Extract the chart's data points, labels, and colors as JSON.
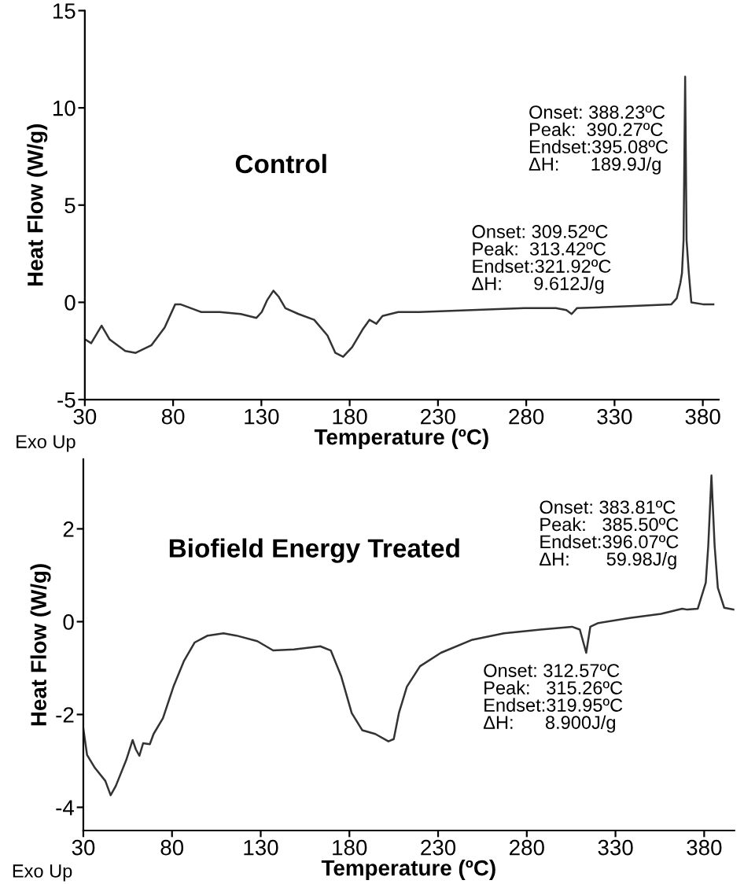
{
  "chart_data": [
    {
      "type": "line",
      "title": "Control",
      "xlabel": "Temperature (ºC)",
      "ylabel": "Heat Flow (W/g)",
      "xlim": [
        30,
        389
      ],
      "xticks": [
        30,
        80,
        130,
        180,
        230,
        280,
        330,
        380
      ],
      "ylim": [
        -5,
        15
      ],
      "yticks": [
        -5,
        0,
        5,
        10,
        15
      ],
      "grid": false,
      "marker": "none",
      "line_style": "solid",
      "annotations": [
        "Onset: 388.23ºC\nPeak:  390.27ºC\nEndset:395.08ºC\nΔH:      189.9J/g",
        "Onset: 309.52ºC\nPeak:  313.42ºC\nEndset:321.92ºC\nΔH:      9.612J/g",
        "Exo Up"
      ],
      "series": [
        {
          "color": "#333333",
          "x": [
            30,
            33.6,
            39.5,
            44,
            52.9,
            58.8,
            67.8,
            75.2,
            81.2,
            84.1,
            90.1,
            96,
            106.4,
            118.3,
            127.2,
            130.2,
            133.2,
            136.8,
            139.7,
            143.6,
            151,
            159.9,
            167.4,
            171.9,
            176.3,
            181.4,
            187.3,
            191.2,
            195.1,
            198.6,
            207.5,
            219.4,
            249.2,
            278.9,
            296.8,
            302.7,
            305.7,
            308.7,
            338.4,
            362.2,
            365.2,
            367.3,
            368.2,
            369.1,
            370,
            370.8,
            372,
            373.5,
            380,
            386
          ],
          "values": [
            -1.9,
            -2.1,
            -1.2,
            -1.9,
            -2.5,
            -2.6,
            -2.2,
            -1.3,
            -0.1,
            -0.1,
            -0.3,
            -0.5,
            -0.5,
            -0.6,
            -0.8,
            -0.5,
            0.1,
            0.6,
            0.3,
            -0.3,
            -0.6,
            -0.9,
            -1.7,
            -2.6,
            -2.8,
            -2.3,
            -1.4,
            -0.9,
            -1.1,
            -0.7,
            -0.5,
            -0.5,
            -0.4,
            -0.3,
            -0.3,
            -0.4,
            -0.6,
            -0.3,
            -0.2,
            -0.1,
            0.2,
            1.0,
            1.5,
            3.2,
            11.6,
            3.2,
            1.6,
            0,
            -0.1,
            -0.1
          ]
        }
      ]
    },
    {
      "type": "line",
      "title": "Biofield Energy Treated",
      "xlabel": "Temperature (ºC)",
      "ylabel": "Heat Flow (W/g)",
      "xlim": [
        30,
        397
      ],
      "xticks": [
        30,
        80,
        130,
        180,
        230,
        280,
        330,
        380
      ],
      "ylim": [
        -4.5,
        3.5
      ],
      "yticks": [
        -4,
        -2,
        0,
        2
      ],
      "grid": false,
      "marker": "none",
      "line_style": "solid",
      "annotations": [
        "Onset: 383.81ºC\nPeak:   385.50ºC\nEndset:396.07ºC\nΔH:       59.98J/g",
        "Onset: 312.57ºC\nPeak:   315.26ºC\nEndset:319.95ºC\nΔH:      8.900J/g",
        "Exo Up"
      ],
      "series": [
        {
          "color": "#333333",
          "x": [
            30,
            32.1,
            36.5,
            42.4,
            45.4,
            48.3,
            54.2,
            57.8,
            59.6,
            61.6,
            63.7,
            67.5,
            69.6,
            74.9,
            80.8,
            86.8,
            92.7,
            100.1,
            109,
            116.3,
            128.1,
            137,
            148.8,
            163.6,
            169.5,
            175.4,
            181.3,
            187.3,
            194.6,
            202,
            205,
            207.9,
            212.4,
            219.8,
            231.6,
            249.3,
            267.1,
            287.8,
            305.5,
            309.9,
            313.5,
            315.8,
            320.3,
            338,
            355.7,
            367.6,
            370.5,
            376.4,
            380.9,
            382.3,
            384.1,
            385.9,
            387.7,
            391.3,
            396.6
          ],
          "values": [
            -2.3,
            -2.87,
            -3.15,
            -3.43,
            -3.74,
            -3.54,
            -2.98,
            -2.55,
            -2.75,
            -2.89,
            -2.62,
            -2.64,
            -2.42,
            -2.08,
            -1.4,
            -0.84,
            -0.45,
            -0.3,
            -0.25,
            -0.3,
            -0.42,
            -0.62,
            -0.6,
            -0.53,
            -0.62,
            -1.18,
            -1.97,
            -2.34,
            -2.42,
            -2.58,
            -2.53,
            -1.97,
            -1.4,
            -0.96,
            -0.67,
            -0.39,
            -0.25,
            -0.17,
            -0.11,
            -0.17,
            -0.67,
            -0.11,
            -0.03,
            0.08,
            0.17,
            0.28,
            0.26,
            0.28,
            0.84,
            1.63,
            3.15,
            1.63,
            0.73,
            0.3,
            0.26
          ]
        }
      ]
    }
  ]
}
